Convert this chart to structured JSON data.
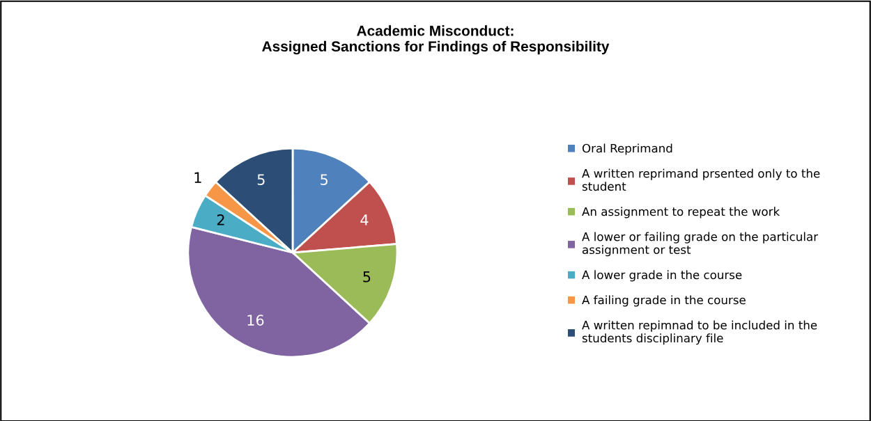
{
  "chart_data": {
    "type": "pie",
    "title": "Academic Misconduct:\nAssigned Sanctions for Findings of Responsibility",
    "categories": [
      "Oral Reprimand",
      "A written reprimand prsented only to the student",
      "An assignment to repeat the work",
      "A lower or failing grade on the particular assignment or test",
      "A lower grade in the course",
      "A failing grade in the course",
      "A written repimnad to be included in the students disciplinary file"
    ],
    "values": [
      5,
      4,
      5,
      16,
      2,
      1,
      5
    ],
    "colors": [
      "#4f81bd",
      "#c0504d",
      "#9bbb59",
      "#8064a2",
      "#4bacc6",
      "#f79646",
      "#2c4d75"
    ],
    "data_labels": true,
    "legend": "right"
  }
}
